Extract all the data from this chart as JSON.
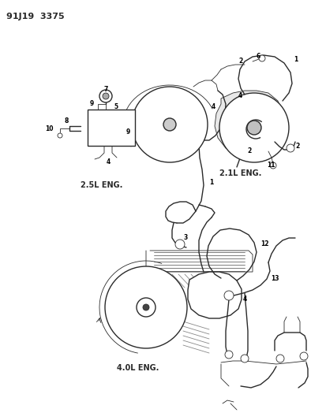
{
  "title": "91J19  3375",
  "background_color": "#ffffff",
  "text_color": "#000000",
  "line_color": "#2a2a2a",
  "figsize": [
    3.94,
    5.33
  ],
  "dpi": 100,
  "label_25L": "2.5L ENG.",
  "label_21L": "2.1L ENG.",
  "label_40L": "4.0L ENG."
}
